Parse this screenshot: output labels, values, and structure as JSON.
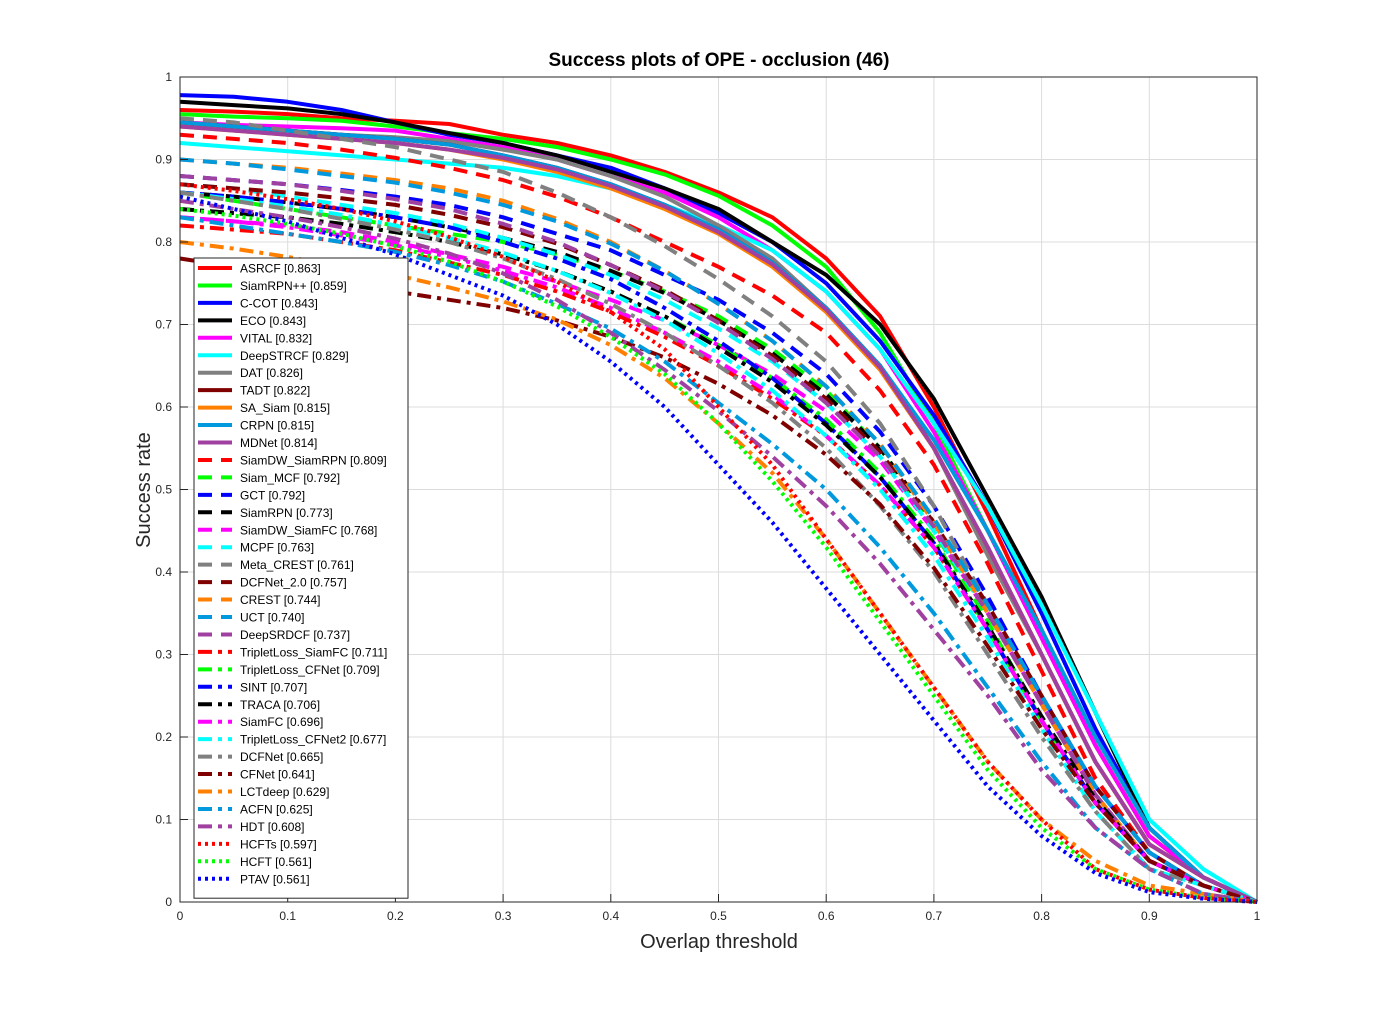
{
  "chart_data": {
    "type": "line",
    "title": "Success plots of OPE - occlusion (46)",
    "xlabel": "Overlap threshold",
    "ylabel": "Success rate",
    "xlim": [
      0,
      1
    ],
    "ylim": [
      0,
      1
    ],
    "xticks": [
      "0",
      "0.1",
      "0.2",
      "0.3",
      "0.4",
      "0.5",
      "0.6",
      "0.7",
      "0.8",
      "0.9",
      "1"
    ],
    "yticks": [
      "0",
      "0.1",
      "0.2",
      "0.3",
      "0.4",
      "0.5",
      "0.6",
      "0.7",
      "0.8",
      "0.9",
      "1"
    ],
    "grid": true,
    "legend_position": "left",
    "x": [
      0,
      0.05,
      0.1,
      0.15,
      0.2,
      0.25,
      0.3,
      0.35,
      0.4,
      0.45,
      0.5,
      0.55,
      0.6,
      0.65,
      0.7,
      0.75,
      0.8,
      0.85,
      0.9,
      0.95,
      1
    ],
    "series": [
      {
        "name": "ASRCF [0.863]",
        "color": "#ff0000",
        "style": "solid",
        "values": [
          0.96,
          0.958,
          0.955,
          0.95,
          0.947,
          0.943,
          0.93,
          0.92,
          0.905,
          0.885,
          0.86,
          0.83,
          0.78,
          0.71,
          0.6,
          0.47,
          0.33,
          0.19,
          0.08,
          0.03,
          0.0
        ]
      },
      {
        "name": "SiamRPN++ [0.859]",
        "color": "#00ff00",
        "style": "solid",
        "values": [
          0.955,
          0.952,
          0.95,
          0.947,
          0.94,
          0.932,
          0.925,
          0.915,
          0.9,
          0.882,
          0.856,
          0.82,
          0.77,
          0.69,
          0.58,
          0.45,
          0.32,
          0.19,
          0.08,
          0.03,
          0.0
        ]
      },
      {
        "name": "C-COT [0.843]",
        "color": "#0000ff",
        "style": "solid",
        "values": [
          0.978,
          0.976,
          0.97,
          0.96,
          0.945,
          0.93,
          0.92,
          0.905,
          0.89,
          0.865,
          0.835,
          0.8,
          0.75,
          0.68,
          0.59,
          0.48,
          0.35,
          0.21,
          0.09,
          0.03,
          0.0
        ]
      },
      {
        "name": "ECO [0.843]",
        "color": "#000000",
        "style": "solid",
        "values": [
          0.97,
          0.966,
          0.962,
          0.955,
          0.945,
          0.932,
          0.92,
          0.905,
          0.885,
          0.865,
          0.84,
          0.8,
          0.76,
          0.7,
          0.61,
          0.49,
          0.37,
          0.23,
          0.09,
          0.03,
          0.0
        ]
      },
      {
        "name": "VITAL [0.832]",
        "color": "#ff00ff",
        "style": "solid",
        "values": [
          0.945,
          0.942,
          0.94,
          0.938,
          0.935,
          0.925,
          0.915,
          0.9,
          0.88,
          0.86,
          0.83,
          0.79,
          0.74,
          0.67,
          0.57,
          0.45,
          0.32,
          0.19,
          0.08,
          0.03,
          0.0
        ]
      },
      {
        "name": "DeepSTRCF [0.829]",
        "color": "#00ffff",
        "style": "solid",
        "values": [
          0.92,
          0.915,
          0.91,
          0.905,
          0.9,
          0.895,
          0.89,
          0.88,
          0.865,
          0.845,
          0.82,
          0.79,
          0.74,
          0.67,
          0.58,
          0.48,
          0.36,
          0.23,
          0.1,
          0.04,
          0.0
        ]
      },
      {
        "name": "DAT [0.826]",
        "color": "#808080",
        "style": "solid",
        "values": [
          0.94,
          0.938,
          0.935,
          0.93,
          0.927,
          0.922,
          0.912,
          0.9,
          0.88,
          0.855,
          0.82,
          0.78,
          0.72,
          0.65,
          0.55,
          0.42,
          0.3,
          0.17,
          0.07,
          0.03,
          0.0
        ]
      },
      {
        "name": "TADT [0.822]",
        "color": "#800000",
        "style": "solid",
        "values": [
          0.945,
          0.94,
          0.935,
          0.93,
          0.925,
          0.918,
          0.905,
          0.89,
          0.87,
          0.845,
          0.815,
          0.775,
          0.72,
          0.65,
          0.55,
          0.43,
          0.3,
          0.17,
          0.07,
          0.03,
          0.0
        ]
      },
      {
        "name": "SA_Siam [0.815]",
        "color": "#ff8000",
        "style": "solid",
        "values": [
          0.94,
          0.935,
          0.93,
          0.925,
          0.92,
          0.912,
          0.9,
          0.885,
          0.865,
          0.84,
          0.81,
          0.77,
          0.715,
          0.645,
          0.55,
          0.43,
          0.3,
          0.17,
          0.07,
          0.03,
          0.0
        ]
      },
      {
        "name": "CRPN [0.815]",
        "color": "#0099dd",
        "style": "solid",
        "values": [
          0.945,
          0.94,
          0.935,
          0.93,
          0.925,
          0.918,
          0.905,
          0.89,
          0.87,
          0.845,
          0.815,
          0.775,
          0.72,
          0.65,
          0.56,
          0.45,
          0.33,
          0.2,
          0.09,
          0.03,
          0.0
        ]
      },
      {
        "name": "MDNet [0.814]",
        "color": "#a040a0",
        "style": "solid",
        "values": [
          0.94,
          0.935,
          0.93,
          0.925,
          0.92,
          0.912,
          0.902,
          0.888,
          0.868,
          0.843,
          0.812,
          0.773,
          0.718,
          0.648,
          0.55,
          0.43,
          0.3,
          0.17,
          0.07,
          0.03,
          0.0
        ]
      },
      {
        "name": "SiamDW_SiamRPN [0.809]",
        "color": "#ff0000",
        "style": "dashed",
        "values": [
          0.93,
          0.925,
          0.92,
          0.912,
          0.902,
          0.89,
          0.875,
          0.855,
          0.83,
          0.8,
          0.77,
          0.735,
          0.69,
          0.62,
          0.53,
          0.41,
          0.28,
          0.15,
          0.06,
          0.02,
          0.0
        ]
      },
      {
        "name": "Siam_MCF [0.792]",
        "color": "#00ff00",
        "style": "dashed",
        "values": [
          0.86,
          0.85,
          0.84,
          0.83,
          0.82,
          0.81,
          0.8,
          0.785,
          0.765,
          0.74,
          0.71,
          0.67,
          0.62,
          0.55,
          0.45,
          0.34,
          0.22,
          0.12,
          0.05,
          0.02,
          0.0
        ]
      },
      {
        "name": "GCT [0.792]",
        "color": "#0000ff",
        "style": "dashed",
        "values": [
          0.88,
          0.875,
          0.87,
          0.863,
          0.855,
          0.845,
          0.83,
          0.81,
          0.79,
          0.76,
          0.73,
          0.69,
          0.64,
          0.57,
          0.48,
          0.37,
          0.25,
          0.14,
          0.06,
          0.02,
          0.0
        ]
      },
      {
        "name": "SiamRPN [0.773]",
        "color": "#000000",
        "style": "dashed",
        "values": [
          0.86,
          0.855,
          0.848,
          0.84,
          0.83,
          0.818,
          0.805,
          0.788,
          0.765,
          0.738,
          0.705,
          0.665,
          0.615,
          0.55,
          0.46,
          0.35,
          0.24,
          0.13,
          0.05,
          0.02,
          0.0
        ]
      },
      {
        "name": "SiamDW_SiamFC [0.768]",
        "color": "#ff00ff",
        "style": "dashed",
        "values": [
          0.83,
          0.825,
          0.82,
          0.812,
          0.8,
          0.785,
          0.77,
          0.752,
          0.73,
          0.705,
          0.675,
          0.64,
          0.595,
          0.535,
          0.45,
          0.35,
          0.24,
          0.13,
          0.05,
          0.02,
          0.0
        ]
      },
      {
        "name": "MCPF [0.763]",
        "color": "#00ffff",
        "style": "dashed",
        "values": [
          0.87,
          0.865,
          0.855,
          0.845,
          0.835,
          0.822,
          0.805,
          0.785,
          0.76,
          0.73,
          0.695,
          0.655,
          0.605,
          0.54,
          0.45,
          0.35,
          0.24,
          0.13,
          0.05,
          0.02,
          0.0
        ]
      },
      {
        "name": "Meta_CREST [0.761]",
        "color": "#808080",
        "style": "dashed",
        "values": [
          0.95,
          0.945,
          0.935,
          0.925,
          0.915,
          0.9,
          0.885,
          0.86,
          0.83,
          0.795,
          0.755,
          0.71,
          0.655,
          0.58,
          0.48,
          0.36,
          0.24,
          0.13,
          0.05,
          0.02,
          0.0
        ]
      },
      {
        "name": "DCFNet_2.0 [0.757]",
        "color": "#800000",
        "style": "dashed",
        "values": [
          0.87,
          0.865,
          0.86,
          0.853,
          0.845,
          0.833,
          0.818,
          0.798,
          0.772,
          0.742,
          0.705,
          0.662,
          0.61,
          0.545,
          0.46,
          0.36,
          0.25,
          0.14,
          0.06,
          0.02,
          0.0
        ]
      },
      {
        "name": "CREST [0.744]",
        "color": "#ff8000",
        "style": "dashed",
        "values": [
          0.9,
          0.895,
          0.89,
          0.883,
          0.875,
          0.865,
          0.85,
          0.828,
          0.8,
          0.765,
          0.725,
          0.68,
          0.625,
          0.555,
          0.46,
          0.35,
          0.24,
          0.13,
          0.05,
          0.02,
          0.0
        ]
      },
      {
        "name": "UCT [0.740]",
        "color": "#0099dd",
        "style": "dashed",
        "values": [
          0.9,
          0.895,
          0.888,
          0.88,
          0.872,
          0.86,
          0.845,
          0.825,
          0.798,
          0.765,
          0.725,
          0.68,
          0.625,
          0.555,
          0.465,
          0.36,
          0.25,
          0.14,
          0.06,
          0.02,
          0.0
        ]
      },
      {
        "name": "DeepSRDCF [0.737]",
        "color": "#a040a0",
        "style": "dashed",
        "values": [
          0.88,
          0.875,
          0.87,
          0.862,
          0.852,
          0.84,
          0.822,
          0.8,
          0.772,
          0.74,
          0.702,
          0.658,
          0.605,
          0.54,
          0.455,
          0.35,
          0.24,
          0.13,
          0.05,
          0.02,
          0.0
        ]
      },
      {
        "name": "TripletLoss_SiamFC [0.711]",
        "color": "#ff0000",
        "style": "dashdot",
        "values": [
          0.82,
          0.815,
          0.81,
          0.8,
          0.79,
          0.775,
          0.76,
          0.74,
          0.715,
          0.685,
          0.65,
          0.61,
          0.565,
          0.505,
          0.43,
          0.33,
          0.22,
          0.12,
          0.05,
          0.02,
          0.0
        ]
      },
      {
        "name": "TripletLoss_CFNet [0.709]",
        "color": "#00ff00",
        "style": "dashdot",
        "values": [
          0.84,
          0.835,
          0.83,
          0.822,
          0.812,
          0.8,
          0.785,
          0.765,
          0.74,
          0.71,
          0.675,
          0.635,
          0.585,
          0.52,
          0.44,
          0.33,
          0.22,
          0.12,
          0.05,
          0.02,
          0.0
        ]
      },
      {
        "name": "SINT [0.707]",
        "color": "#0000ff",
        "style": "dashdot",
        "values": [
          0.86,
          0.855,
          0.848,
          0.84,
          0.83,
          0.818,
          0.8,
          0.78,
          0.755,
          0.72,
          0.68,
          0.635,
          0.58,
          0.515,
          0.435,
          0.33,
          0.22,
          0.12,
          0.05,
          0.02,
          0.0
        ]
      },
      {
        "name": "TRACA [0.706]",
        "color": "#000000",
        "style": "dashdot",
        "values": [
          0.84,
          0.835,
          0.83,
          0.822,
          0.812,
          0.8,
          0.785,
          0.765,
          0.74,
          0.71,
          0.672,
          0.63,
          0.578,
          0.515,
          0.435,
          0.335,
          0.225,
          0.125,
          0.05,
          0.02,
          0.0
        ]
      },
      {
        "name": "SiamFC [0.696]",
        "color": "#ff00ff",
        "style": "dashdot",
        "values": [
          0.83,
          0.825,
          0.818,
          0.808,
          0.796,
          0.782,
          0.765,
          0.745,
          0.72,
          0.69,
          0.655,
          0.615,
          0.565,
          0.505,
          0.43,
          0.33,
          0.22,
          0.12,
          0.05,
          0.02,
          0.0
        ]
      },
      {
        "name": "TripletLoss_CFNet2 [0.677]",
        "color": "#00ffff",
        "style": "dashdot",
        "values": [
          0.86,
          0.852,
          0.843,
          0.833,
          0.82,
          0.805,
          0.787,
          0.765,
          0.738,
          0.705,
          0.665,
          0.62,
          0.565,
          0.5,
          0.42,
          0.32,
          0.21,
          0.11,
          0.04,
          0.02,
          0.0
        ]
      },
      {
        "name": "DCFNet [0.665]",
        "color": "#808080",
        "style": "dashdot",
        "values": [
          0.86,
          0.85,
          0.84,
          0.828,
          0.815,
          0.8,
          0.78,
          0.755,
          0.725,
          0.69,
          0.65,
          0.605,
          0.55,
          0.48,
          0.4,
          0.3,
          0.2,
          0.11,
          0.04,
          0.02,
          0.0
        ]
      },
      {
        "name": "CFNet [0.641]",
        "color": "#800000",
        "style": "dashdot",
        "values": [
          0.78,
          0.77,
          0.76,
          0.75,
          0.74,
          0.73,
          0.72,
          0.705,
          0.685,
          0.66,
          0.628,
          0.59,
          0.542,
          0.482,
          0.405,
          0.31,
          0.21,
          0.12,
          0.05,
          0.02,
          0.0
        ]
      },
      {
        "name": "LCTdeep [0.629]",
        "color": "#ff8000",
        "style": "dashdot",
        "values": [
          0.8,
          0.792,
          0.782,
          0.77,
          0.76,
          0.745,
          0.728,
          0.706,
          0.675,
          0.635,
          0.58,
          0.52,
          0.44,
          0.35,
          0.26,
          0.17,
          0.1,
          0.05,
          0.02,
          0.01,
          0.0
        ]
      },
      {
        "name": "ACFN [0.625]",
        "color": "#0099dd",
        "style": "dashdot",
        "values": [
          0.83,
          0.82,
          0.81,
          0.8,
          0.788,
          0.772,
          0.752,
          0.725,
          0.695,
          0.655,
          0.605,
          0.555,
          0.5,
          0.43,
          0.35,
          0.26,
          0.17,
          0.09,
          0.04,
          0.01,
          0.0
        ]
      },
      {
        "name": "HDT [0.608]",
        "color": "#a040a0",
        "style": "dashdot",
        "values": [
          0.85,
          0.84,
          0.83,
          0.818,
          0.804,
          0.786,
          0.762,
          0.73,
          0.69,
          0.645,
          0.595,
          0.54,
          0.48,
          0.41,
          0.33,
          0.25,
          0.16,
          0.09,
          0.04,
          0.01,
          0.0
        ]
      },
      {
        "name": "HCFTs [0.597]",
        "color": "#ff0000",
        "style": "dotted",
        "values": [
          0.87,
          0.862,
          0.852,
          0.84,
          0.825,
          0.806,
          0.782,
          0.752,
          0.715,
          0.67,
          0.6,
          0.53,
          0.44,
          0.35,
          0.26,
          0.17,
          0.1,
          0.04,
          0.015,
          0.005,
          0.0
        ]
      },
      {
        "name": "HCFT [0.561]",
        "color": "#00ff00",
        "style": "dotted",
        "values": [
          0.84,
          0.832,
          0.822,
          0.81,
          0.795,
          0.776,
          0.752,
          0.722,
          0.685,
          0.64,
          0.58,
          0.51,
          0.43,
          0.34,
          0.25,
          0.16,
          0.09,
          0.04,
          0.015,
          0.005,
          0.0
        ]
      },
      {
        "name": "PTAV [0.561]",
        "color": "#0000ff",
        "style": "dotted",
        "values": [
          0.855,
          0.84,
          0.825,
          0.805,
          0.785,
          0.76,
          0.735,
          0.7,
          0.655,
          0.6,
          0.53,
          0.46,
          0.38,
          0.3,
          0.22,
          0.14,
          0.08,
          0.035,
          0.012,
          0.004,
          0.0
        ]
      }
    ]
  }
}
